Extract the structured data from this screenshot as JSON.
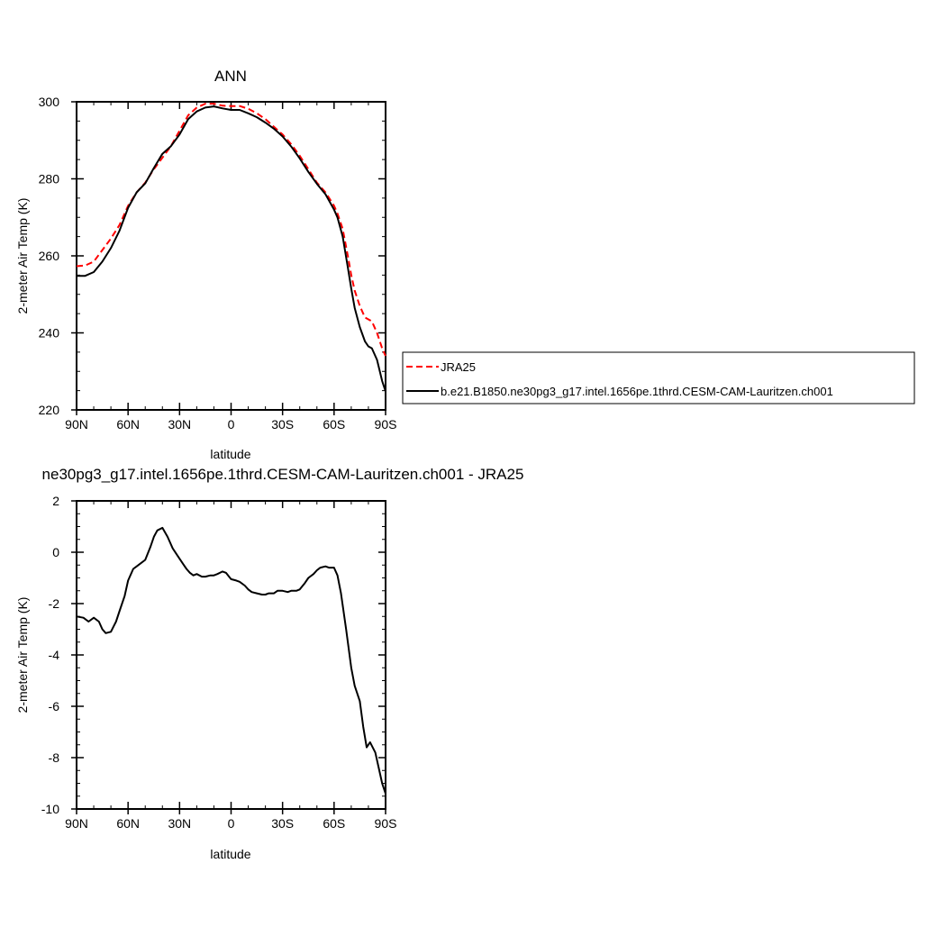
{
  "chart_data": [
    {
      "type": "line",
      "title": "ANN",
      "xlabel": "latitude",
      "ylabel": "2-meter Air Temp (K)",
      "xlim": [
        90,
        -90
      ],
      "ylim": [
        220,
        300
      ],
      "xticks": [
        90,
        60,
        30,
        0,
        -30,
        -60,
        -90
      ],
      "xtick_labels": [
        "90N",
        "60N",
        "30N",
        "0",
        "30S",
        "60S",
        "90S"
      ],
      "yticks": [
        220,
        240,
        260,
        280,
        300
      ],
      "ytick_labels": [
        "220",
        "240",
        "260",
        "280",
        "300"
      ],
      "grid": false,
      "legend_position": "right",
      "series": [
        {
          "name": "JRA25",
          "color": "#ff0000",
          "dash": "dashed",
          "x": [
            90,
            85,
            80,
            75,
            70,
            65,
            60,
            55,
            50,
            45,
            40,
            35,
            30,
            25,
            20,
            15,
            10,
            5,
            0,
            -5,
            -10,
            -15,
            -20,
            -25,
            -30,
            -35,
            -40,
            -45,
            -50,
            -55,
            -60,
            -62,
            -65,
            -68,
            -70,
            -72,
            -75,
            -78,
            -80,
            -82,
            -85,
            -88,
            -90
          ],
          "y": [
            257.3,
            257.5,
            258.5,
            261.5,
            264.5,
            268,
            273,
            276.5,
            279,
            282.5,
            285.5,
            288.5,
            292.5,
            296.5,
            298.5,
            299.5,
            299.5,
            299,
            298.9,
            298.9,
            298.2,
            297,
            295.5,
            293.5,
            291.5,
            289,
            286,
            282.5,
            279,
            276.5,
            273,
            271,
            267,
            260,
            255,
            251,
            247,
            244,
            243.5,
            243,
            240,
            236,
            234
          ]
        },
        {
          "name": "b.e21.B1850.ne30pg3_g17.intel.1656pe.1thrd.CESM-CAM-Lauritzen.ch001",
          "color": "#000000",
          "dash": "solid",
          "x": [
            90,
            85,
            80,
            75,
            70,
            65,
            60,
            55,
            50,
            45,
            40,
            35,
            30,
            25,
            20,
            15,
            10,
            5,
            0,
            -5,
            -10,
            -15,
            -20,
            -25,
            -30,
            -35,
            -40,
            -45,
            -50,
            -55,
            -60,
            -62,
            -65,
            -68,
            -70,
            -72,
            -75,
            -78,
            -80,
            -82,
            -85,
            -88,
            -90
          ],
          "y": [
            254.8,
            254.8,
            255.8,
            258.5,
            262,
            266.5,
            272.5,
            276.5,
            278.8,
            282.8,
            286.5,
            288.5,
            291.5,
            295.5,
            297.5,
            298.5,
            298.8,
            298.3,
            297.9,
            297.9,
            297,
            296,
            294.6,
            293,
            291,
            288.4,
            285.3,
            281.8,
            278.7,
            276,
            272,
            270,
            265,
            257,
            251.5,
            246.5,
            241.5,
            237.8,
            236.5,
            236,
            233,
            227.5,
            224.8
          ]
        }
      ]
    },
    {
      "type": "line",
      "title": "ne30pg3_g17.intel.1656pe.1thrd.CESM-CAM-Lauritzen.ch001 - JRA25",
      "xlabel": "latitude",
      "ylabel": "2-meter Air Temp (K)",
      "xlim": [
        90,
        -90
      ],
      "ylim": [
        -10,
        2
      ],
      "xticks": [
        90,
        60,
        30,
        0,
        -30,
        -60,
        -90
      ],
      "xtick_labels": [
        "90N",
        "60N",
        "30N",
        "0",
        "30S",
        "60S",
        "90S"
      ],
      "yticks": [
        -10,
        -8,
        -6,
        -4,
        -2,
        0,
        2
      ],
      "ytick_labels": [
        "-10",
        "-8",
        "-6",
        "-4",
        "-2",
        "0",
        "2"
      ],
      "grid": false,
      "series": [
        {
          "color": "#000000",
          "dash": "solid",
          "x": [
            90,
            86,
            83,
            80,
            77,
            75,
            73,
            70,
            67,
            65,
            62,
            60,
            57,
            55,
            53,
            50,
            47,
            45,
            43,
            40,
            37,
            34,
            31,
            28,
            26,
            24,
            22,
            20,
            17,
            15,
            12,
            10,
            8,
            5,
            3,
            0,
            -3,
            -5,
            -8,
            -10,
            -12,
            -15,
            -18,
            -20,
            -22,
            -25,
            -27,
            -30,
            -33,
            -35,
            -38,
            -40,
            -43,
            -45,
            -48,
            -50,
            -52,
            -55,
            -57,
            -60,
            -62,
            -64,
            -67,
            -70,
            -72,
            -75,
            -77,
            -79,
            -81,
            -84,
            -86,
            -88,
            -90
          ],
          "y": [
            -2.5,
            -2.55,
            -2.7,
            -2.55,
            -2.7,
            -3,
            -3.15,
            -3.1,
            -2.7,
            -2.3,
            -1.7,
            -1.1,
            -0.65,
            -0.55,
            -0.45,
            -0.3,
            0.2,
            0.6,
            0.85,
            0.95,
            0.6,
            0.15,
            -0.15,
            -0.45,
            -0.65,
            -0.8,
            -0.9,
            -0.85,
            -0.95,
            -0.95,
            -0.9,
            -0.9,
            -0.85,
            -0.75,
            -0.8,
            -1.05,
            -1.1,
            -1.15,
            -1.3,
            -1.45,
            -1.55,
            -1.6,
            -1.65,
            -1.65,
            -1.6,
            -1.6,
            -1.5,
            -1.5,
            -1.55,
            -1.5,
            -1.5,
            -1.45,
            -1.2,
            -1,
            -0.85,
            -0.7,
            -0.6,
            -0.55,
            -0.6,
            -0.6,
            -0.9,
            -1.6,
            -3,
            -4.5,
            -5.2,
            -5.8,
            -6.8,
            -7.6,
            -7.4,
            -7.8,
            -8.4,
            -9,
            -9.4
          ]
        }
      ]
    }
  ]
}
